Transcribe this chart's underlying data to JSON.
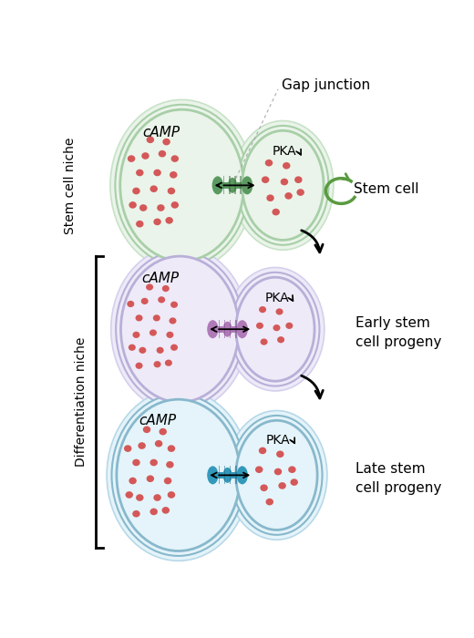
{
  "bg_color": "#ffffff",
  "panel1": {
    "niche_fill": "#eaf4ea",
    "niche_border": "#a8cfa8",
    "niche_border2": "#c8e2c8",
    "sc_fill": "#eaf4ea",
    "sc_border": "#a8cfa8",
    "sc_border2": "#c8e2c8",
    "junction_color": "#5a9a60",
    "junction_dark": "#3d6b40",
    "label_niche": "Stem cell niche",
    "label_right": "Stem cell",
    "arrow_color": "#5a9a40"
  },
  "panel2": {
    "niche_fill": "#eeeaf8",
    "niche_border": "#b8b0d8",
    "niche_border2": "#d4d0ec",
    "sc_fill": "#eeeaf8",
    "sc_border": "#b8b0d8",
    "sc_border2": "#d4d0ec",
    "junction_color": "#b07ab8",
    "junction_dark": "#7a4a88",
    "label_right": "Early stem\ncell progeny"
  },
  "panel3": {
    "niche_fill": "#e4f4fa",
    "niche_border": "#88b8cc",
    "niche_border2": "#b8d8e8",
    "sc_fill": "#e4f4fa",
    "sc_border": "#88b8cc",
    "sc_border2": "#b8d8e8",
    "junction_color": "#3399bb",
    "junction_dark": "#1a6688",
    "label_right": "Late stem\ncell progeny"
  },
  "dot_color": "#d45858",
  "label_camp": "cAMP",
  "label_pka": "PKA",
  "label_diff_niche": "Differentiation niche",
  "gap_junction_label": "Gap junction"
}
